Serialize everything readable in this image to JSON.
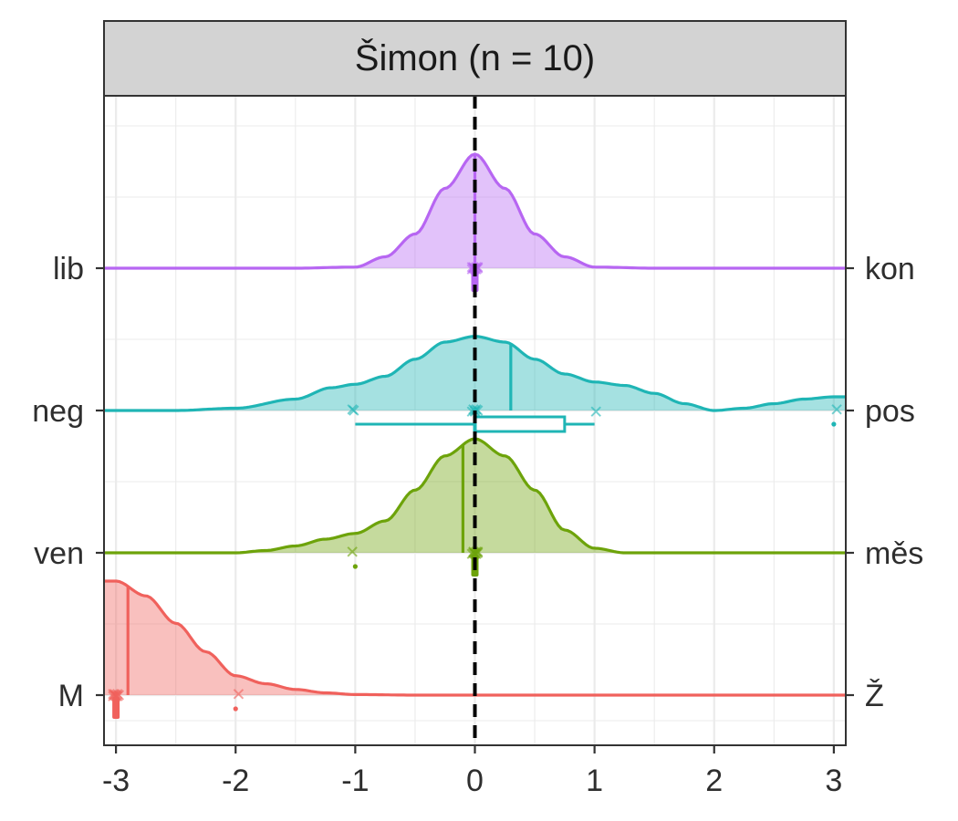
{
  "chart_data": {
    "type": "area",
    "title": "Šimon (n = 10)",
    "xlim": [
      -3.1,
      3.1
    ],
    "x_ticks": [
      "-3",
      "-2",
      "-1",
      "0",
      "1",
      "2",
      "3"
    ],
    "x_tick_values": [
      -3,
      -2,
      -1,
      0,
      1,
      2,
      3
    ],
    "reference_line_x": 0,
    "grid": true,
    "rows": [
      {
        "left_label": "lib",
        "right_label": "kon",
        "color": "#B766F2",
        "mean": 0.0,
        "density": [
          [
            -3.1,
            0.0
          ],
          [
            -1.5,
            0.0
          ],
          [
            -1.0,
            0.01
          ],
          [
            -0.75,
            0.1
          ],
          [
            -0.5,
            0.3
          ],
          [
            -0.25,
            0.7
          ],
          [
            0.0,
            1.0
          ],
          [
            0.25,
            0.7
          ],
          [
            0.5,
            0.3
          ],
          [
            0.75,
            0.1
          ],
          [
            1.0,
            0.01
          ],
          [
            1.5,
            0.0
          ],
          [
            3.1,
            0.0
          ]
        ],
        "points": [
          0,
          0,
          0,
          0,
          0,
          0,
          0,
          0,
          0,
          0
        ],
        "box": null
      },
      {
        "left_label": "neg",
        "right_label": "pos",
        "color": "#1FB5B5",
        "mean": 0.3,
        "density": [
          [
            -3.1,
            0.0
          ],
          [
            -2.5,
            0.0
          ],
          [
            -2.0,
            0.02
          ],
          [
            -1.5,
            0.1
          ],
          [
            -1.2,
            0.2
          ],
          [
            -1.0,
            0.23
          ],
          [
            -0.75,
            0.3
          ],
          [
            -0.5,
            0.45
          ],
          [
            -0.25,
            0.6
          ],
          [
            0.0,
            0.65
          ],
          [
            0.25,
            0.6
          ],
          [
            0.5,
            0.45
          ],
          [
            0.75,
            0.32
          ],
          [
            1.0,
            0.25
          ],
          [
            1.25,
            0.22
          ],
          [
            1.5,
            0.15
          ],
          [
            1.75,
            0.06
          ],
          [
            2.0,
            0.0
          ],
          [
            2.25,
            0.02
          ],
          [
            2.5,
            0.06
          ],
          [
            2.75,
            0.1
          ],
          [
            3.0,
            0.12
          ],
          [
            3.1,
            0.12
          ]
        ],
        "points": [
          -1,
          -1,
          0,
          0,
          0,
          0,
          0,
          0,
          1,
          3
        ],
        "box": {
          "min": -1,
          "q1": 0,
          "median": 0,
          "q3": 0.75,
          "max": 1,
          "outliers": [
            3
          ]
        }
      },
      {
        "left_label": "ven",
        "right_label": "měs",
        "color": "#6DA30A",
        "mean": -0.1,
        "density": [
          [
            -3.1,
            0.0
          ],
          [
            -2.0,
            0.0
          ],
          [
            -1.75,
            0.02
          ],
          [
            -1.5,
            0.06
          ],
          [
            -1.25,
            0.12
          ],
          [
            -1.0,
            0.17
          ],
          [
            -0.75,
            0.28
          ],
          [
            -0.5,
            0.55
          ],
          [
            -0.25,
            0.85
          ],
          [
            0.0,
            1.0
          ],
          [
            0.25,
            0.85
          ],
          [
            0.5,
            0.55
          ],
          [
            0.75,
            0.2
          ],
          [
            1.0,
            0.04
          ],
          [
            1.25,
            0.0
          ],
          [
            3.1,
            0.0
          ]
        ],
        "points": [
          -1,
          0,
          0,
          0,
          0,
          0,
          0,
          0,
          0,
          0
        ],
        "box": null
      },
      {
        "left_label": "M",
        "right_label": "Ž",
        "color": "#F0615C",
        "mean": -2.9,
        "density": [
          [
            -3.1,
            1.0
          ],
          [
            -3.0,
            1.0
          ],
          [
            -2.75,
            0.87
          ],
          [
            -2.5,
            0.63
          ],
          [
            -2.25,
            0.38
          ],
          [
            -2.0,
            0.17
          ],
          [
            -1.75,
            0.1
          ],
          [
            -1.5,
            0.05
          ],
          [
            -1.25,
            0.02
          ],
          [
            -1.0,
            0.005
          ],
          [
            -0.5,
            0.0
          ],
          [
            3.1,
            0.0
          ]
        ],
        "points": [
          -3,
          -3,
          -3,
          -3,
          -3,
          -3,
          -3,
          -3,
          -3,
          -2
        ],
        "box": null
      }
    ]
  }
}
